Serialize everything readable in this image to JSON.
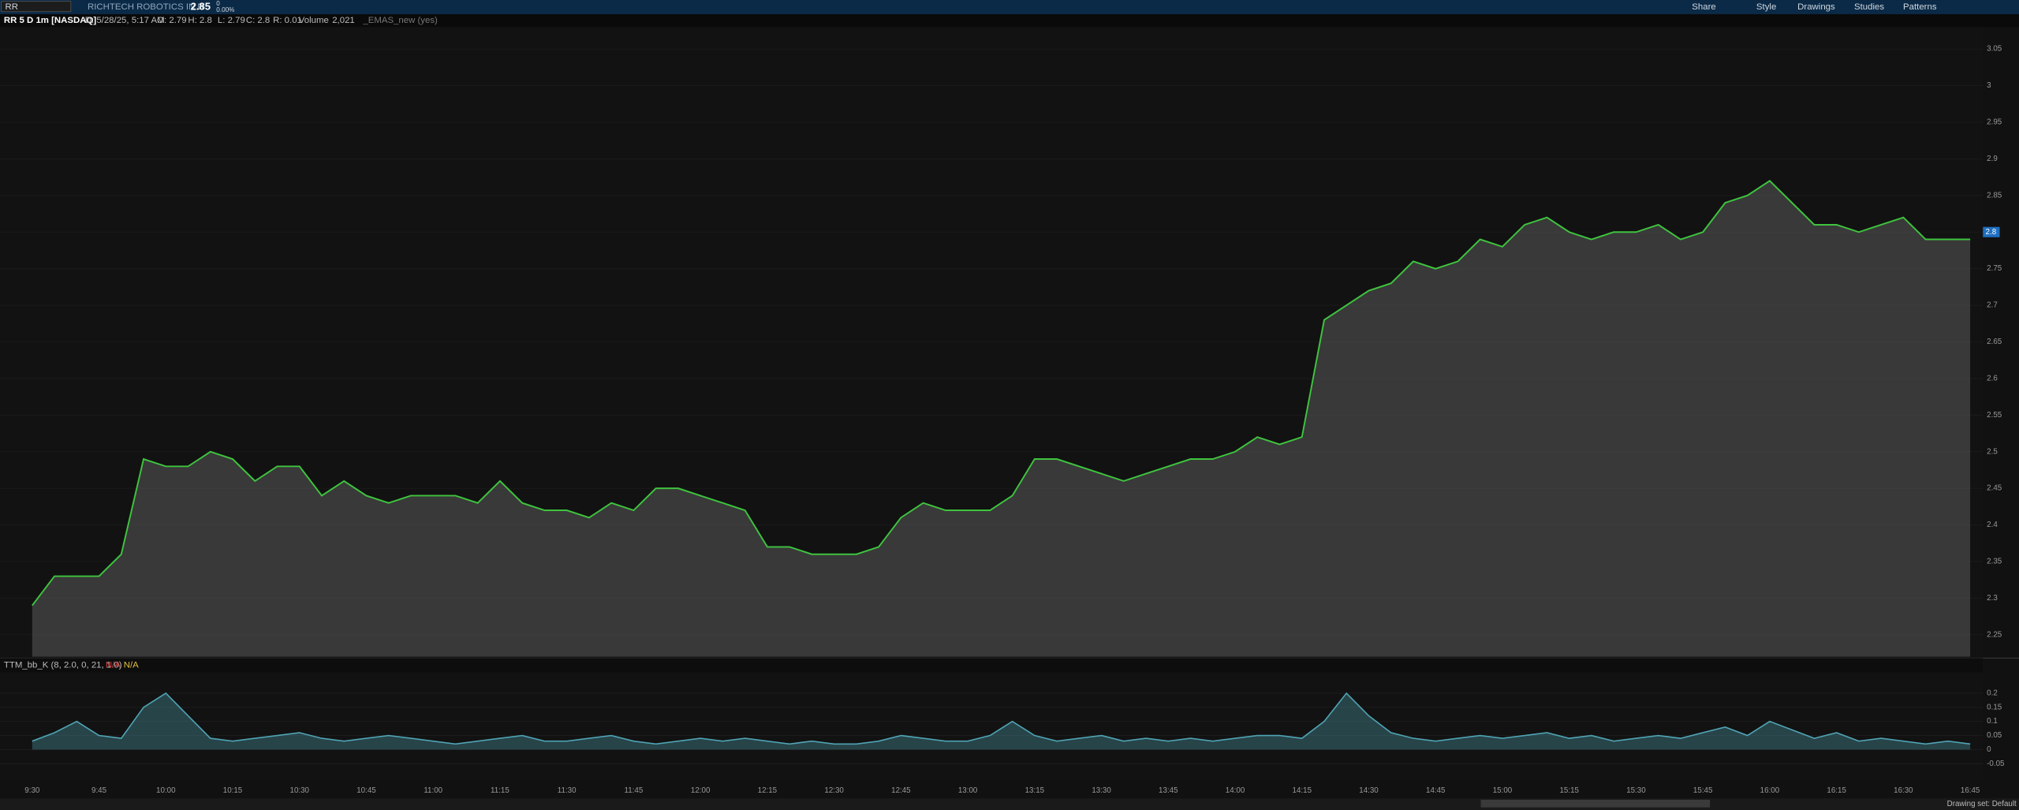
{
  "toolbar": {
    "symbol": "RR",
    "company": "RICHTECH ROBOTICS IN B",
    "last": "2.85",
    "change": "0",
    "change_pct": "0.00%",
    "buttons": [
      "Share",
      "Style",
      "Drawings",
      "Studies",
      "Patterns"
    ]
  },
  "info_bar": {
    "title": "RR 5 D 1m [NASDAQ]",
    "date": "D: 5/28/25, 5:17 AM",
    "open": "O: 2.79",
    "high": "H: 2.8",
    "low": "L: 2.79",
    "close": "C: 2.8",
    "range": "R: 0.01",
    "volume_label": "Volume",
    "volume": "2,021",
    "study": "_EMAS_new (yes)"
  },
  "footer": {
    "drawing_set": "Drawing set: Default"
  },
  "chart_data": [
    {
      "type": "line",
      "color": "#3ec43e",
      "categories": [
        "9:30",
        null,
        null,
        "9:45",
        null,
        null,
        "10:00",
        null,
        null,
        "10:15",
        null,
        null,
        "10:30",
        null,
        null,
        "10:45",
        null,
        null,
        "11:00",
        null,
        null,
        "11:15",
        null,
        null,
        "11:30",
        null,
        null,
        "11:45",
        null,
        null,
        "12:00",
        null,
        null,
        "12:15",
        null,
        null,
        "12:30",
        null,
        null,
        "12:45",
        null,
        null,
        "13:00",
        null,
        null,
        "13:15",
        null,
        null,
        "13:30",
        null,
        null,
        "13:45",
        null,
        null,
        "14:00",
        null,
        null,
        "14:15",
        null,
        null,
        "14:30",
        null,
        null,
        "14:45",
        null,
        null,
        "15:00",
        null,
        null,
        "15:15",
        null,
        null,
        "15:30",
        null,
        null,
        "15:45",
        null,
        null,
        "16:00",
        null,
        null,
        "16:15",
        null,
        null,
        "16:30",
        null,
        null,
        "16:45"
      ],
      "values": [
        2.29,
        2.33,
        2.33,
        2.33,
        2.36,
        2.49,
        2.48,
        2.48,
        2.5,
        2.49,
        2.46,
        2.48,
        2.48,
        2.44,
        2.46,
        2.44,
        2.43,
        2.44,
        2.44,
        2.44,
        2.43,
        2.46,
        2.43,
        2.42,
        2.42,
        2.41,
        2.43,
        2.42,
        2.45,
        2.45,
        2.44,
        2.43,
        2.42,
        2.37,
        2.37,
        2.36,
        2.36,
        2.36,
        2.37,
        2.41,
        2.43,
        2.42,
        2.42,
        2.42,
        2.44,
        2.49,
        2.49,
        2.48,
        2.47,
        2.46,
        2.47,
        2.48,
        2.49,
        2.49,
        2.5,
        2.52,
        2.51,
        2.52,
        2.68,
        2.7,
        2.72,
        2.73,
        2.76,
        2.75,
        2.76,
        2.79,
        2.78,
        2.81,
        2.82,
        2.8,
        2.79,
        2.8,
        2.8,
        2.81,
        2.79,
        2.8,
        2.84,
        2.85,
        2.87,
        2.84,
        2.81,
        2.81,
        2.8,
        2.81,
        2.82,
        2.79,
        2.79,
        2.79
      ],
      "ylim": [
        2.22,
        3.08
      ],
      "yticks": [
        2.25,
        2.3,
        2.35,
        2.4,
        2.45,
        2.5,
        2.55,
        2.6,
        2.65,
        2.7,
        2.75,
        2.8,
        2.85,
        2.9,
        2.95,
        3,
        3.05
      ],
      "last_price": 2.8
    },
    {
      "type": "area",
      "title": "TTM_bb_K (8, 2.0, 0, 21, 1.0)",
      "readouts": [
        "N/A",
        "N/A"
      ],
      "color": "#4fa3b3",
      "values": [
        0.03,
        0.06,
        0.1,
        0.05,
        0.04,
        0.15,
        0.2,
        0.12,
        0.04,
        0.03,
        0.04,
        0.05,
        0.06,
        0.04,
        0.03,
        0.04,
        0.05,
        0.04,
        0.03,
        0.02,
        0.03,
        0.04,
        0.05,
        0.03,
        0.03,
        0.04,
        0.05,
        0.03,
        0.02,
        0.03,
        0.04,
        0.03,
        0.04,
        0.03,
        0.02,
        0.03,
        0.02,
        0.02,
        0.03,
        0.05,
        0.04,
        0.03,
        0.03,
        0.05,
        0.1,
        0.05,
        0.03,
        0.04,
        0.05,
        0.03,
        0.04,
        0.03,
        0.04,
        0.03,
        0.04,
        0.05,
        0.05,
        0.04,
        0.1,
        0.2,
        0.12,
        0.06,
        0.04,
        0.03,
        0.04,
        0.05,
        0.04,
        0.05,
        0.06,
        0.04,
        0.05,
        0.03,
        0.04,
        0.05,
        0.04,
        0.06,
        0.08,
        0.05,
        0.1,
        0.07,
        0.04,
        0.06,
        0.03,
        0.04,
        0.03,
        0.02,
        0.03,
        0.02
      ],
      "ylim": [
        -0.1,
        0.27
      ],
      "yticks": [
        -0.05,
        0,
        0.05,
        0.1,
        0.15,
        0.2
      ]
    }
  ]
}
